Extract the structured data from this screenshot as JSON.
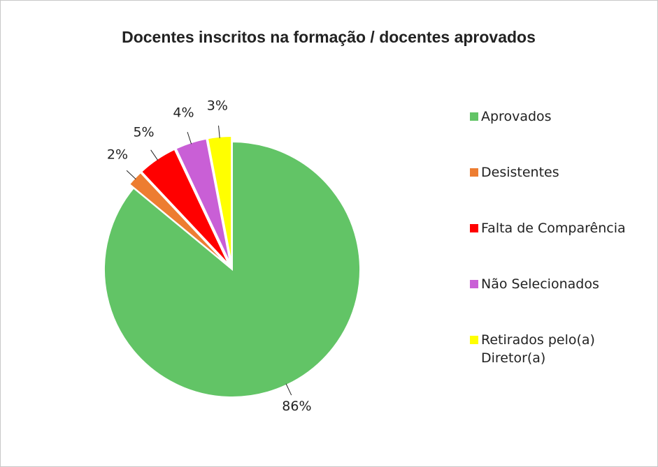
{
  "chart_data": {
    "type": "pie",
    "title": "Docentes inscritos na formação / docentes aprovados",
    "categories": [
      "Aprovados",
      "Desistentes",
      "Falta de Comparência",
      "Não Selecionados",
      "Retirados pelo(a) Diretor(a)"
    ],
    "values": [
      86,
      2,
      5,
      4,
      3
    ],
    "value_labels": [
      "86%",
      "2%",
      "5%",
      "4%",
      "3%"
    ],
    "colors": [
      "#62c466",
      "#ed7d31",
      "#ff0000",
      "#c95fd6",
      "#ffff00"
    ],
    "legend": "right"
  }
}
